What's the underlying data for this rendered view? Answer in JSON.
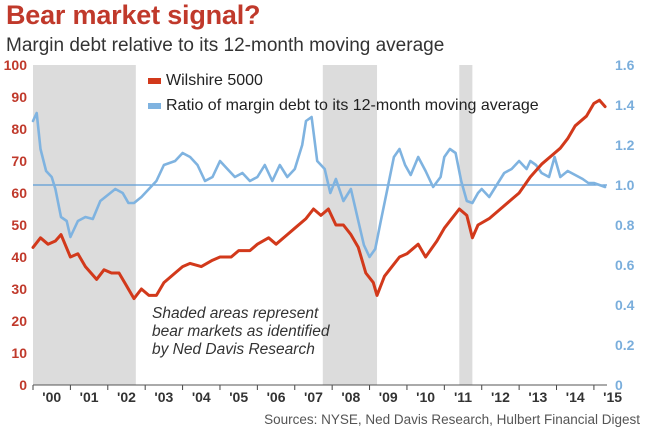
{
  "title": "Bear market signal?",
  "subtitle": "Margin debt relative to its 12-month moving average",
  "source": "Sources: NYSE, Ned Davis Research, Hulbert Financial Digest",
  "annotation_lines": [
    "Shaded areas represent",
    "bear markets as identified",
    "by Ned Davis Research"
  ],
  "colors": {
    "title": "#c0392b",
    "wilshire": "#d2391b",
    "ratio": "#7fb3e0",
    "left_axis": "#c0392b",
    "right_axis": "#7aaedc",
    "shade": "#dcdcdc",
    "refline": "#5b9bd5"
  },
  "chart_data": {
    "type": "line",
    "x_tick_labels": [
      "'00",
      "'01",
      "'02",
      "'03",
      "'04",
      "'05",
      "'06",
      "'07",
      "'08",
      "'09",
      "'10",
      "'11",
      "'12",
      "'13",
      "'14",
      "'15"
    ],
    "left_axis": {
      "ylim": [
        0,
        100
      ],
      "ticks": [
        0,
        10,
        20,
        30,
        40,
        50,
        60,
        70,
        80,
        90,
        100
      ]
    },
    "right_axis": {
      "ylim": [
        0,
        1.6
      ],
      "ticks": [
        "0",
        "0.2",
        "0.4",
        "0.6",
        "0.8",
        "1.0",
        "1.2",
        "1.4",
        "1.6"
      ]
    },
    "reference_line": 1.0,
    "shaded_periods": [
      [
        2000.0,
        2002.75
      ],
      [
        2007.75,
        2009.2
      ],
      [
        2011.4,
        2011.75
      ]
    ],
    "series": [
      {
        "name": "Wilshire 5000",
        "axis": "left",
        "points": [
          [
            2000.0,
            43
          ],
          [
            2000.2,
            46
          ],
          [
            2000.4,
            44
          ],
          [
            2000.6,
            45
          ],
          [
            2000.75,
            47
          ],
          [
            2001.0,
            40
          ],
          [
            2001.2,
            41
          ],
          [
            2001.4,
            37
          ],
          [
            2001.7,
            33
          ],
          [
            2001.9,
            36
          ],
          [
            2002.1,
            35
          ],
          [
            2002.3,
            35
          ],
          [
            2002.5,
            31
          ],
          [
            2002.7,
            27
          ],
          [
            2002.9,
            30
          ],
          [
            2003.1,
            28
          ],
          [
            2003.3,
            28
          ],
          [
            2003.5,
            32
          ],
          [
            2003.8,
            35
          ],
          [
            2004.0,
            37
          ],
          [
            2004.2,
            38
          ],
          [
            2004.5,
            37
          ],
          [
            2004.8,
            39
          ],
          [
            2005.0,
            40
          ],
          [
            2005.3,
            40
          ],
          [
            2005.5,
            42
          ],
          [
            2005.8,
            42
          ],
          [
            2006.0,
            44
          ],
          [
            2006.3,
            46
          ],
          [
            2006.5,
            44
          ],
          [
            2006.8,
            47
          ],
          [
            2007.0,
            49
          ],
          [
            2007.3,
            52
          ],
          [
            2007.5,
            55
          ],
          [
            2007.7,
            53
          ],
          [
            2007.9,
            55
          ],
          [
            2008.1,
            50
          ],
          [
            2008.3,
            50
          ],
          [
            2008.5,
            47
          ],
          [
            2008.7,
            43
          ],
          [
            2008.9,
            35
          ],
          [
            2009.1,
            32
          ],
          [
            2009.2,
            28
          ],
          [
            2009.4,
            34
          ],
          [
            2009.6,
            37
          ],
          [
            2009.8,
            40
          ],
          [
            2010.0,
            41
          ],
          [
            2010.3,
            44
          ],
          [
            2010.5,
            40
          ],
          [
            2010.8,
            45
          ],
          [
            2011.0,
            49
          ],
          [
            2011.2,
            52
          ],
          [
            2011.4,
            55
          ],
          [
            2011.6,
            53
          ],
          [
            2011.75,
            46
          ],
          [
            2011.9,
            50
          ],
          [
            2012.2,
            52
          ],
          [
            2012.5,
            55
          ],
          [
            2012.8,
            58
          ],
          [
            2013.0,
            60
          ],
          [
            2013.3,
            65
          ],
          [
            2013.6,
            69
          ],
          [
            2013.9,
            72
          ],
          [
            2014.1,
            74
          ],
          [
            2014.3,
            77
          ],
          [
            2014.5,
            81
          ],
          [
            2014.8,
            84
          ],
          [
            2015.0,
            88
          ],
          [
            2015.15,
            89
          ],
          [
            2015.3,
            87
          ]
        ]
      },
      {
        "name": "Ratio of margin debt to its 12-month moving average",
        "axis": "right",
        "points": [
          [
            2000.0,
            1.32
          ],
          [
            2000.1,
            1.36
          ],
          [
            2000.2,
            1.18
          ],
          [
            2000.35,
            1.07
          ],
          [
            2000.5,
            1.04
          ],
          [
            2000.6,
            0.98
          ],
          [
            2000.75,
            0.84
          ],
          [
            2000.9,
            0.82
          ],
          [
            2001.0,
            0.74
          ],
          [
            2001.2,
            0.82
          ],
          [
            2001.4,
            0.84
          ],
          [
            2001.6,
            0.83
          ],
          [
            2001.8,
            0.92
          ],
          [
            2002.0,
            0.95
          ],
          [
            2002.2,
            0.98
          ],
          [
            2002.4,
            0.96
          ],
          [
            2002.55,
            0.91
          ],
          [
            2002.7,
            0.91
          ],
          [
            2002.9,
            0.94
          ],
          [
            2003.1,
            0.98
          ],
          [
            2003.3,
            1.02
          ],
          [
            2003.5,
            1.1
          ],
          [
            2003.8,
            1.12
          ],
          [
            2004.0,
            1.16
          ],
          [
            2004.2,
            1.14
          ],
          [
            2004.4,
            1.1
          ],
          [
            2004.6,
            1.02
          ],
          [
            2004.8,
            1.04
          ],
          [
            2005.0,
            1.12
          ],
          [
            2005.2,
            1.08
          ],
          [
            2005.4,
            1.04
          ],
          [
            2005.6,
            1.06
          ],
          [
            2005.8,
            1.02
          ],
          [
            2006.0,
            1.04
          ],
          [
            2006.2,
            1.1
          ],
          [
            2006.4,
            1.02
          ],
          [
            2006.6,
            1.1
          ],
          [
            2006.8,
            1.04
          ],
          [
            2007.0,
            1.08
          ],
          [
            2007.2,
            1.2
          ],
          [
            2007.3,
            1.32
          ],
          [
            2007.45,
            1.34
          ],
          [
            2007.6,
            1.12
          ],
          [
            2007.8,
            1.08
          ],
          [
            2007.95,
            0.96
          ],
          [
            2008.1,
            1.03
          ],
          [
            2008.3,
            0.92
          ],
          [
            2008.5,
            0.98
          ],
          [
            2008.7,
            0.82
          ],
          [
            2008.85,
            0.7
          ],
          [
            2009.0,
            0.64
          ],
          [
            2009.15,
            0.68
          ],
          [
            2009.3,
            0.82
          ],
          [
            2009.5,
            1.0
          ],
          [
            2009.65,
            1.14
          ],
          [
            2009.8,
            1.18
          ],
          [
            2009.95,
            1.1
          ],
          [
            2010.1,
            1.05
          ],
          [
            2010.3,
            1.14
          ],
          [
            2010.5,
            1.07
          ],
          [
            2010.7,
            0.99
          ],
          [
            2010.9,
            1.04
          ],
          [
            2011.0,
            1.14
          ],
          [
            2011.15,
            1.18
          ],
          [
            2011.3,
            1.16
          ],
          [
            2011.45,
            1.02
          ],
          [
            2011.6,
            0.92
          ],
          [
            2011.75,
            0.91
          ],
          [
            2011.9,
            0.96
          ],
          [
            2012.0,
            0.98
          ],
          [
            2012.2,
            0.94
          ],
          [
            2012.4,
            1.0
          ],
          [
            2012.6,
            1.06
          ],
          [
            2012.8,
            1.08
          ],
          [
            2013.0,
            1.12
          ],
          [
            2013.2,
            1.08
          ],
          [
            2013.3,
            1.12
          ],
          [
            2013.45,
            1.1
          ],
          [
            2013.6,
            1.06
          ],
          [
            2013.8,
            1.04
          ],
          [
            2013.95,
            1.14
          ],
          [
            2014.1,
            1.04
          ],
          [
            2014.3,
            1.07
          ],
          [
            2014.5,
            1.05
          ],
          [
            2014.7,
            1.03
          ],
          [
            2014.85,
            1.01
          ],
          [
            2015.0,
            1.01
          ],
          [
            2015.15,
            1.0
          ],
          [
            2015.3,
            0.99
          ]
        ]
      }
    ]
  }
}
